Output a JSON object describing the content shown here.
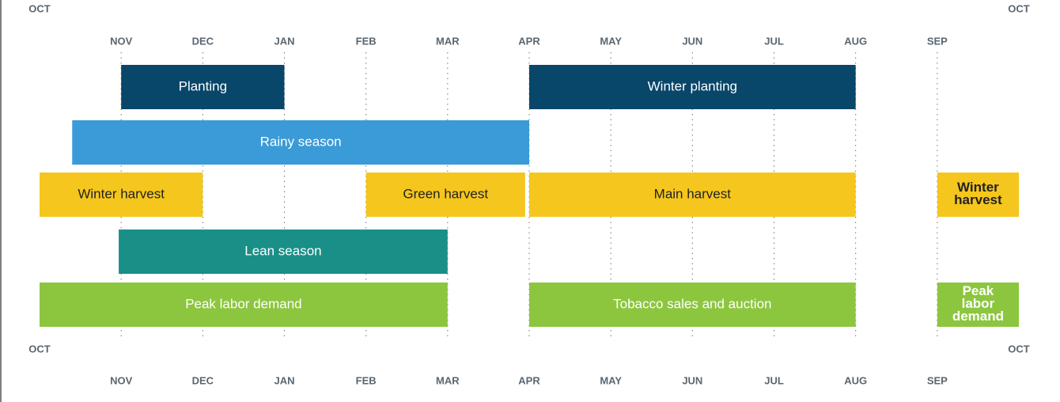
{
  "chart_data": {
    "type": "timeline",
    "categories": [
      "OCT",
      "NOV",
      "DEC",
      "JAN",
      "FEB",
      "MAR",
      "APR",
      "MAY",
      "JUN",
      "JUL",
      "AUG",
      "SEP",
      "OCT"
    ],
    "xlim": [
      0,
      12
    ],
    "rows": [
      [
        {
          "label": "Planting",
          "start": 1,
          "end": 3,
          "color": "#08466a",
          "text_color": "#ffffff"
        },
        {
          "label": "Winter planting",
          "start": 6,
          "end": 10,
          "color": "#08466a",
          "text_color": "#ffffff"
        }
      ],
      [
        {
          "label": "Rainy season",
          "start": 0.4,
          "end": 6,
          "color": "#3a9bd8",
          "text_color": "#ffffff"
        }
      ],
      [
        {
          "label": "Winter harvest",
          "start": 0,
          "end": 2,
          "color": "#f5c61d",
          "text_color": "#222222"
        },
        {
          "label": "Green harvest",
          "start": 4,
          "end": 5.95,
          "color": "#f5c61d",
          "text_color": "#222222"
        },
        {
          "label": "Main harvest",
          "start": 6,
          "end": 10,
          "color": "#f5c61d",
          "text_color": "#222222"
        },
        {
          "label": "Winter\nharvest",
          "start": 11,
          "end": 12,
          "color": "#f5c61d",
          "text_color": "#222222"
        }
      ],
      [
        {
          "label": "Lean season",
          "start": 0.97,
          "end": 5,
          "color": "#1a8f88",
          "text_color": "#ffffff"
        }
      ],
      [
        {
          "label": "Peak labor demand",
          "start": 0,
          "end": 5,
          "color": "#8cc63f",
          "text_color": "#ffffff"
        },
        {
          "label": "Tobacco sales and auction",
          "start": 6,
          "end": 10,
          "color": "#8cc63f",
          "text_color": "#ffffff"
        },
        {
          "label": "Peak\nlabor\ndemand",
          "start": 11,
          "end": 12,
          "color": "#8cc63f",
          "text_color": "#ffffff"
        }
      ]
    ]
  }
}
